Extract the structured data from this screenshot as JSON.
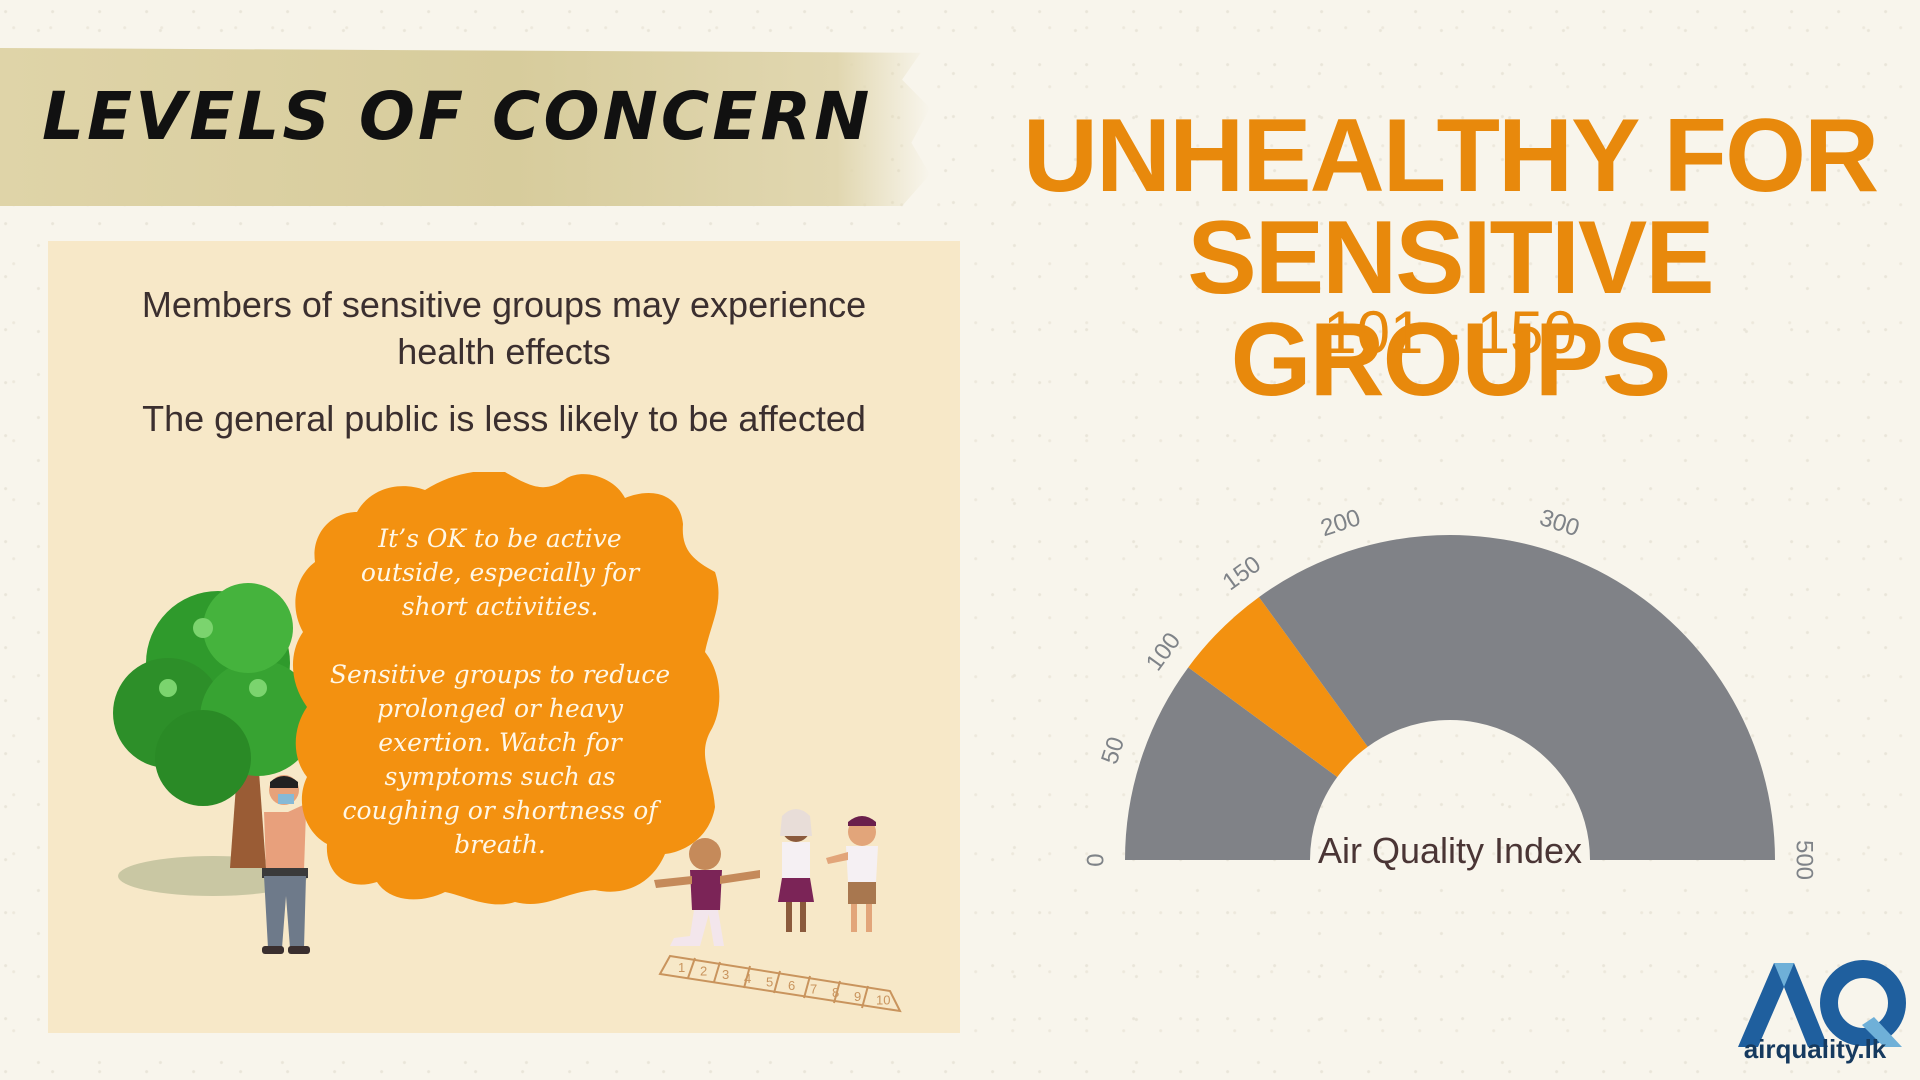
{
  "header": {
    "title": "LEVELS OF CONCERN"
  },
  "description": {
    "line1": "Members of sensitive groups may experience",
    "line2": "health effects",
    "line3": "The general public is less likely to be affected"
  },
  "advice": {
    "line1": "It’s OK to be active",
    "line2": "outside, especially for",
    "line3": "short activities.",
    "line4": "Sensitive groups to reduce",
    "line5": "prolonged or heavy",
    "line6": "exertion. Watch for",
    "line7": "symptoms such as",
    "line8": "coughing or shortness of",
    "line9": "breath."
  },
  "category": {
    "line1": "UNHEALTHY FOR",
    "line2": "SENSITIVE GROUPS",
    "range": "101 - 150"
  },
  "gauge": {
    "title": "Air Quality Index",
    "min": 0,
    "max": 500,
    "ticks": [
      "0",
      "50",
      "100",
      "150",
      "200",
      "300",
      "500"
    ],
    "highlight": [
      101,
      150
    ],
    "colors": {
      "base": "#808287",
      "highlight": "#f39110"
    }
  },
  "hopscotch": [
    "1",
    "2",
    "3",
    "4",
    "5",
    "6",
    "7",
    "8",
    "9",
    "10"
  ],
  "brand": {
    "logo_text": "AQ",
    "caption": "airquality.lk",
    "colors": {
      "primary": "#1f5f9e",
      "light": "#6fb0d8"
    }
  }
}
